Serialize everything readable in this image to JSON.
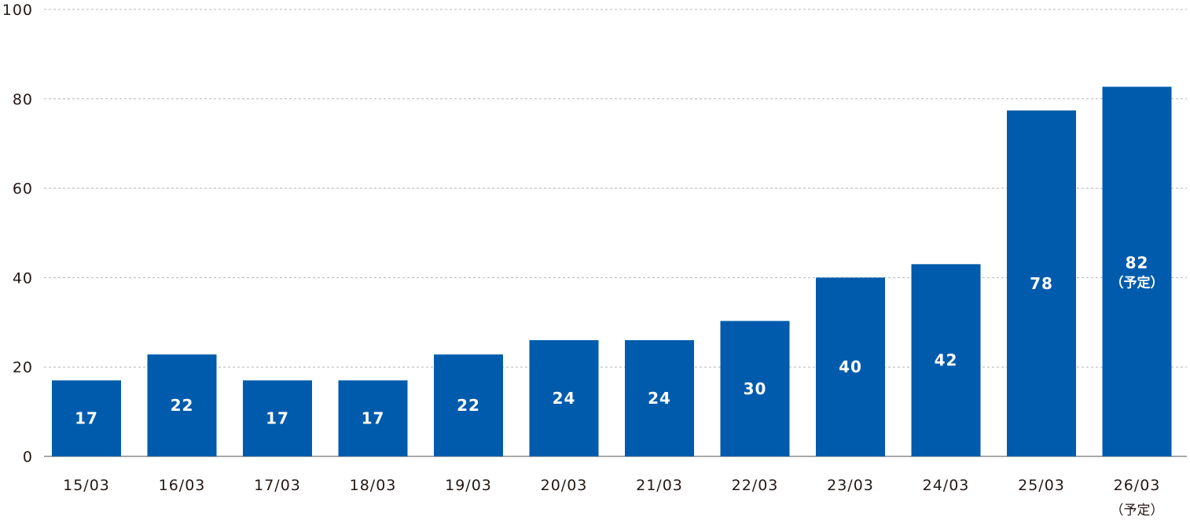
{
  "chart_data": {
    "type": "bar",
    "categories": [
      "15/03",
      "16/03",
      "17/03",
      "18/03",
      "19/03",
      "20/03",
      "21/03",
      "22/03",
      "23/03",
      "24/03",
      "25/03",
      "26/03"
    ],
    "category_notes": [
      "",
      "",
      "",
      "",
      "",
      "",
      "",
      "",
      "",
      "",
      "",
      "（予定）"
    ],
    "values": [
      17,
      22,
      17,
      17,
      22,
      24,
      24,
      30,
      40,
      42,
      78,
      82
    ],
    "bar_heights": [
      17,
      22.8,
      17,
      17,
      22.8,
      26,
      26,
      30.3,
      40,
      43,
      77.4,
      82.7
    ],
    "value_labels": [
      "17",
      "22",
      "17",
      "17",
      "22",
      "24",
      "24",
      "30",
      "40",
      "42",
      "78",
      "82"
    ],
    "value_notes": [
      "",
      "",
      "",
      "",
      "",
      "",
      "",
      "",
      "",
      "",
      "",
      "（予定）"
    ],
    "ylim": [
      0,
      100
    ],
    "yticks": [
      0,
      20,
      40,
      60,
      80,
      100
    ],
    "grid": true,
    "title": "",
    "xlabel": "",
    "ylabel": "",
    "colors": {
      "bar": "#005bac",
      "grid": "#b5b5b5",
      "axis": "#8c8c8c",
      "text": "#231815"
    }
  }
}
